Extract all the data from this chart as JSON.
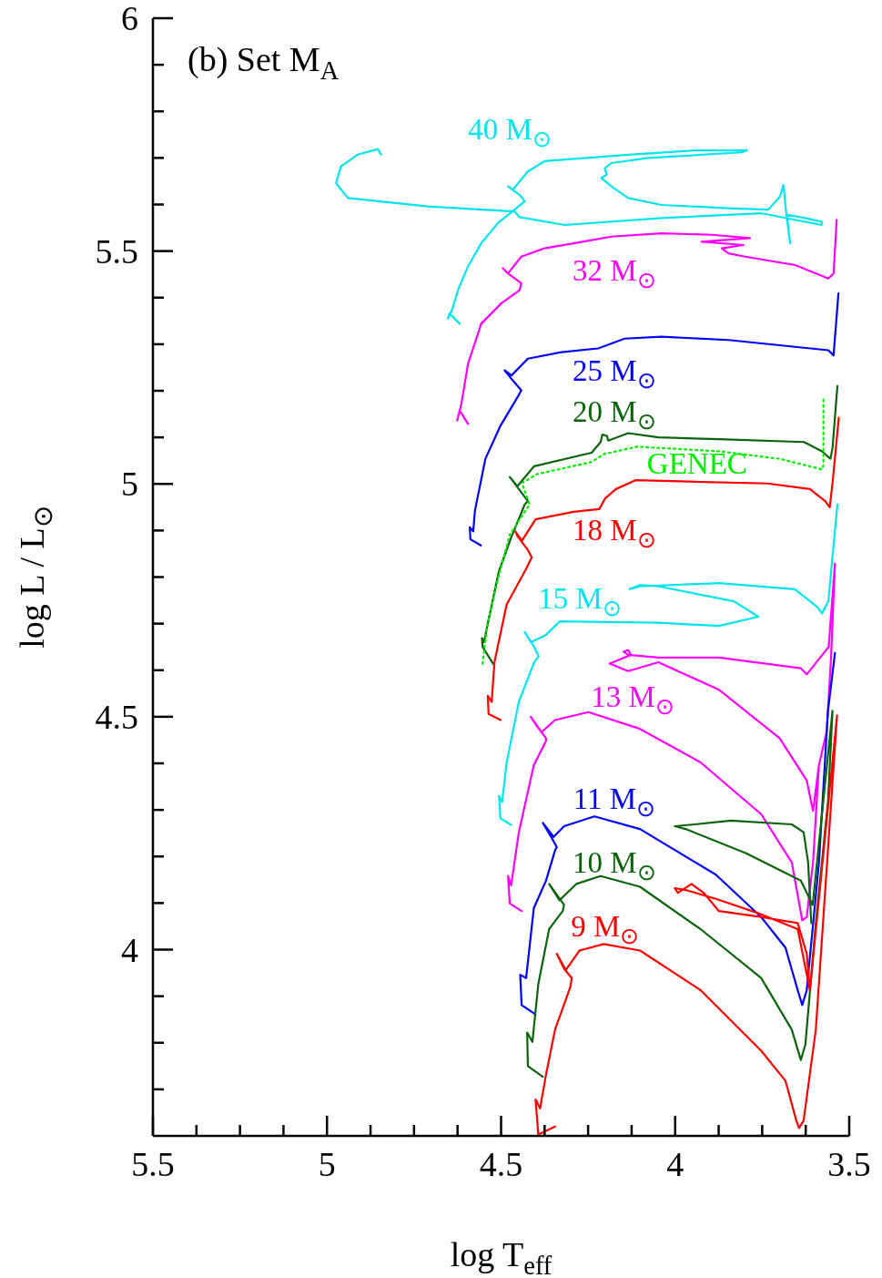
{
  "chart_data": {
    "type": "line",
    "title": "(b) Set M$_{A}$",
    "xlabel": "log T$_{eff}$",
    "ylabel": "log L / L$_{⊙}$",
    "xlim": [
      5.5,
      3.5
    ],
    "ylim": [
      3.6,
      6
    ],
    "xticks": [
      5.5,
      {
        "value": 5.375,
        "label": null
      },
      {
        "value": 5.25,
        "label": null
      },
      {
        "value": 5.125,
        "label": null
      },
      5,
      {
        "value": 4.875,
        "label": null
      },
      {
        "value": 4.75,
        "label": null
      },
      {
        "value": 4.625,
        "label": null
      },
      4.5,
      {
        "value": 4.375,
        "label": null
      },
      {
        "value": 4.25,
        "label": null
      },
      {
        "value": 4.125,
        "label": null
      },
      4,
      {
        "value": 3.875,
        "label": null
      },
      {
        "value": 3.75,
        "label": null
      },
      {
        "value": 3.625,
        "label": null
      },
      3.5
    ],
    "yticks": [
      {
        "value": 3.7,
        "label": null
      },
      {
        "value": 3.8,
        "label": null
      },
      {
        "value": 3.9,
        "label": null
      },
      4,
      {
        "value": 4.1,
        "label": null
      },
      {
        "value": 4.2,
        "label": null
      },
      {
        "value": 4.3,
        "label": null
      },
      {
        "value": 4.4,
        "label": null
      },
      4.5,
      {
        "value": 4.6,
        "label": null
      },
      {
        "value": 4.7,
        "label": null
      },
      {
        "value": 4.8,
        "label": null
      },
      {
        "value": 4.9,
        "label": null
      },
      5,
      {
        "value": 5.1,
        "label": null
      },
      {
        "value": 5.2,
        "label": null
      },
      {
        "value": 5.3,
        "label": null
      },
      {
        "value": 5.4,
        "label": null
      },
      5.5,
      {
        "value": 5.6,
        "label": null
      },
      {
        "value": 5.7,
        "label": null
      },
      {
        "value": 5.8,
        "label": null
      },
      {
        "value": 5.9,
        "label": null
      },
      6
    ],
    "marker": "none",
    "line_style": "solid",
    "series": [
      {
        "name": "40 M$_{⊙}$",
        "color": "#00e5ee",
        "x": [
          4.619,
          4.648,
          4.653,
          4.641,
          4.624,
          4.595,
          4.557,
          4.509,
          4.461,
          4.432,
          4.447,
          4.48,
          4.466,
          4.423,
          4.375,
          4.135,
          3.943,
          3.794,
          3.809,
          4.077,
          4.183,
          4.202,
          4.197,
          4.212,
          4.183,
          4.135,
          4.039,
          3.847,
          3.732,
          3.699,
          3.689,
          3.682,
          3.67,
          3.679,
          3.627,
          3.579,
          3.579,
          3.751,
          4.039,
          4.317,
          4.447,
          4.461,
          4.71,
          4.94,
          4.974,
          4.96,
          4.912,
          4.854,
          4.845
        ],
        "values": [
          5.344,
          5.366,
          5.355,
          5.373,
          5.416,
          5.467,
          5.517,
          5.56,
          5.589,
          5.607,
          5.621,
          5.639,
          5.632,
          5.671,
          5.693,
          5.707,
          5.716,
          5.716,
          5.712,
          5.7,
          5.689,
          5.678,
          5.664,
          5.657,
          5.639,
          5.614,
          5.599,
          5.592,
          5.589,
          5.617,
          5.642,
          5.589,
          5.517,
          5.578,
          5.571,
          5.563,
          5.556,
          5.581,
          5.571,
          5.556,
          5.573,
          5.585,
          5.596,
          5.614,
          5.646,
          5.682,
          5.707,
          5.719,
          5.707
        ]
      },
      {
        "name": "32 M$_{⊙}$",
        "color": "#ff00ff",
        "x": [
          4.595,
          4.619,
          4.626,
          4.614,
          4.595,
          4.557,
          4.499,
          4.447,
          4.442,
          4.475,
          4.495,
          4.48,
          4.442,
          4.375,
          4.288,
          4.183,
          4.039,
          3.895,
          3.785,
          3.924,
          3.804,
          3.866,
          3.847,
          3.799,
          3.655,
          3.56,
          3.545,
          3.536
        ],
        "values": [
          5.129,
          5.158,
          5.136,
          5.172,
          5.258,
          5.344,
          5.388,
          5.416,
          5.431,
          5.449,
          5.463,
          5.452,
          5.488,
          5.506,
          5.517,
          5.531,
          5.538,
          5.535,
          5.528,
          5.52,
          5.513,
          5.506,
          5.495,
          5.488,
          5.47,
          5.441,
          5.452,
          5.567
        ]
      },
      {
        "name": "25 M$_{⊙}$",
        "color": "#0000ff",
        "x": [
          4.558,
          4.588,
          4.59,
          4.58,
          4.575,
          4.545,
          4.501,
          4.449,
          4.442,
          4.475,
          4.49,
          4.47,
          4.423,
          4.327,
          4.221,
          4.145,
          4.039,
          3.847,
          3.56,
          3.545,
          3.531
        ],
        "values": [
          4.868,
          4.881,
          4.907,
          4.898,
          4.943,
          5.054,
          5.126,
          5.191,
          5.201,
          5.23,
          5.244,
          5.233,
          5.269,
          5.283,
          5.291,
          5.312,
          5.316,
          5.309,
          5.287,
          5.276,
          5.409
        ]
      },
      {
        "name": "20 M$_{⊙}$",
        "color": "#0a640a",
        "x": [
          4.523,
          4.553,
          4.555,
          4.549,
          4.536,
          4.506,
          4.471,
          4.432,
          4.423,
          4.449,
          4.475,
          4.453,
          4.405,
          4.24,
          4.214,
          4.209,
          4.196,
          4.192,
          4.135,
          4.048,
          3.874,
          3.63,
          3.578,
          3.554,
          3.548,
          3.534
        ],
        "values": [
          4.614,
          4.65,
          4.669,
          4.66,
          4.708,
          4.813,
          4.885,
          4.956,
          4.963,
          4.989,
          5.015,
          4.995,
          5.038,
          5.067,
          5.09,
          5.106,
          5.103,
          5.093,
          5.109,
          5.1,
          5.096,
          5.09,
          5.07,
          5.054,
          5.077,
          5.21
        ]
      },
      {
        "name": "GENEC",
        "color": "#00ee00",
        "line_style": "dotted",
        "x": [
          4.553,
          4.54,
          4.51,
          4.475,
          4.418,
          4.44,
          4.397,
          4.24,
          4.205,
          4.109,
          3.874,
          3.7,
          3.578,
          3.574,
          3.574
        ],
        "values": [
          4.614,
          4.695,
          4.793,
          4.891,
          4.956,
          5.002,
          5.021,
          5.047,
          5.064,
          5.08,
          5.07,
          5.054,
          5.031,
          5.041,
          5.184
        ]
      },
      {
        "name": "18 M$_{⊙}$",
        "color": "#ff0000",
        "x": [
          4.501,
          4.536,
          4.538,
          4.527,
          4.519,
          4.484,
          4.427,
          4.412,
          4.423,
          4.453,
          4.459,
          4.44,
          4.401,
          4.292,
          4.218,
          4.201,
          4.17,
          4.114,
          3.961,
          3.735,
          3.613,
          3.569,
          3.556,
          3.548,
          3.53
        ],
        "values": [
          4.493,
          4.506,
          4.545,
          4.532,
          4.617,
          4.741,
          4.819,
          4.842,
          4.858,
          4.888,
          4.898,
          4.878,
          4.924,
          4.94,
          4.946,
          4.969,
          4.989,
          5.008,
          5.005,
          5.001,
          4.989,
          4.963,
          4.95,
          5.002,
          5.142
        ]
      },
      {
        "name": "15 M$_{⊙}$",
        "color": "#00e5ee",
        "x": [
          4.471,
          4.502,
          4.506,
          4.497,
          4.484,
          4.449,
          4.405,
          4.392,
          4.405,
          4.432,
          4.414,
          4.371,
          4.331,
          4.048,
          3.874,
          3.761,
          3.831,
          4.048,
          4.101,
          4.131,
          4.101,
          3.874,
          3.656,
          3.591,
          3.578,
          3.56,
          3.534
        ],
        "values": [
          4.268,
          4.282,
          4.33,
          4.317,
          4.402,
          4.532,
          4.617,
          4.63,
          4.65,
          4.682,
          4.66,
          4.676,
          4.705,
          4.702,
          4.695,
          4.715,
          4.748,
          4.78,
          4.783,
          4.774,
          4.78,
          4.787,
          4.774,
          4.735,
          4.722,
          4.748,
          4.956
        ]
      },
      {
        "name": "13 M$_{⊙}$",
        "color": "#ff00ff",
        "x": [
          4.441,
          4.475,
          4.48,
          4.471,
          4.449,
          4.406,
          4.371,
          4.371,
          4.397,
          4.415,
          4.384,
          4.345,
          4.249,
          4.101,
          3.927,
          3.753,
          3.665,
          3.635,
          3.622,
          3.604,
          3.587,
          3.565,
          3.552,
          3.541,
          3.559,
          3.622,
          3.639,
          3.874,
          4.048,
          4.135,
          4.148,
          4.135,
          4.127,
          4.188,
          4.135,
          4.048,
          3.874,
          3.7,
          3.622,
          3.604,
          3.587
        ],
        "values": [
          4.083,
          4.099,
          4.158,
          4.138,
          4.252,
          4.396,
          4.448,
          4.454,
          4.48,
          4.5,
          4.467,
          4.493,
          4.51,
          4.474,
          4.402,
          4.291,
          4.187,
          4.063,
          4.07,
          4.187,
          4.396,
          4.467,
          4.63,
          4.829,
          4.65,
          4.591,
          4.604,
          4.627,
          4.627,
          4.633,
          4.64,
          4.643,
          4.633,
          4.614,
          4.598,
          4.617,
          4.558,
          4.454,
          4.363,
          4.298,
          4.396
        ]
      },
      {
        "name": "11 M$_{⊙}$",
        "color": "#0000ff",
        "x": [
          4.401,
          4.441,
          4.445,
          4.428,
          4.406,
          4.371,
          4.345,
          4.34,
          4.354,
          4.38,
          4.349,
          4.319,
          4.232,
          4.101,
          3.883,
          3.753,
          3.683,
          3.648,
          3.635,
          3.622,
          3.587,
          3.561,
          3.541
        ],
        "values": [
          3.861,
          3.881,
          3.946,
          3.939,
          4.089,
          4.148,
          4.213,
          4.22,
          4.239,
          4.272,
          4.242,
          4.265,
          4.286,
          4.259,
          4.161,
          4.07,
          4.004,
          3.913,
          3.881,
          3.913,
          4.187,
          4.513,
          4.637
        ]
      },
      {
        "name": "10 M$_{⊙}$",
        "color": "#0a640a",
        "x": [
          4.38,
          4.423,
          4.425,
          4.41,
          4.393,
          4.362,
          4.323,
          4.319,
          4.362,
          4.332,
          4.284,
          4.214,
          4.101,
          3.927,
          3.753,
          3.665,
          3.639,
          3.626,
          3.596,
          3.561,
          3.548,
          3.605,
          3.639,
          3.796,
          3.97,
          4.001,
          3.944,
          3.84,
          3.665,
          3.631,
          3.618,
          3.609
        ],
        "values": [
          3.727,
          3.75,
          3.822,
          3.802,
          3.926,
          4.044,
          4.083,
          4.096,
          4.141,
          4.106,
          4.141,
          4.158,
          4.135,
          4.044,
          3.939,
          3.828,
          3.763,
          3.796,
          4.057,
          4.317,
          4.513,
          4.096,
          4.148,
          4.207,
          4.259,
          4.265,
          4.269,
          4.277,
          4.269,
          4.252,
          4.187,
          4.057
        ]
      },
      {
        "name": "9 M$_{⊙}$",
        "color": "#ff0000",
        "x": [
          4.345,
          4.393,
          4.401,
          4.388,
          4.371,
          4.345,
          4.301,
          4.297,
          4.319,
          4.34,
          4.314,
          4.275,
          4.205,
          4.101,
          3.927,
          3.753,
          3.683,
          3.652,
          3.644,
          3.631,
          3.596,
          3.535,
          3.613,
          3.648,
          3.753,
          3.883,
          3.97,
          4.001,
          3.992,
          3.953,
          3.918,
          3.875,
          3.753,
          3.648,
          3.622,
          3.613
        ],
        "values": [
          3.62,
          3.603,
          3.678,
          3.659,
          3.731,
          3.828,
          3.92,
          3.939,
          3.959,
          3.991,
          3.956,
          3.998,
          4.012,
          3.998,
          3.913,
          3.783,
          3.718,
          3.633,
          3.617,
          3.633,
          3.828,
          4.503,
          3.913,
          4.044,
          4.076,
          4.109,
          4.128,
          4.132,
          4.122,
          4.141,
          4.122,
          4.083,
          4.07,
          4.057,
          3.991,
          3.913
        ]
      }
    ]
  }
}
